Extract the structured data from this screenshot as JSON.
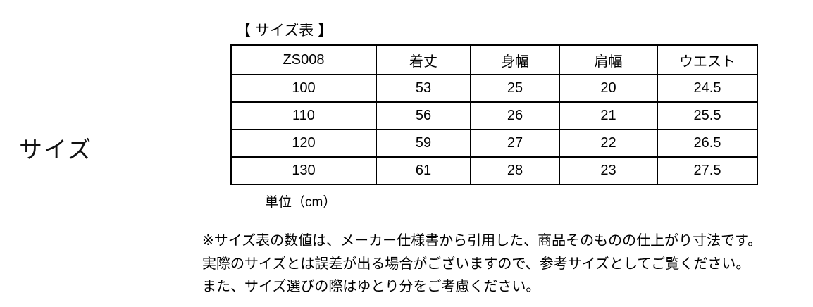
{
  "page": {
    "side_label": "サイズ",
    "table_title": "【 サイズ表 】",
    "unit_note": "単位（cm）"
  },
  "size_table": {
    "model_code": "ZS008",
    "columns": [
      "ZS008",
      "着丈",
      "身幅",
      "肩幅",
      "ウエスト"
    ],
    "rows": [
      [
        "100",
        "53",
        "25",
        "20",
        "24.5"
      ],
      [
        "110",
        "56",
        "26",
        "21",
        "25.5"
      ],
      [
        "120",
        "59",
        "27",
        "22",
        "26.5"
      ],
      [
        "130",
        "61",
        "28",
        "23",
        "27.5"
      ]
    ]
  },
  "notes": {
    "line1": "※サイズ表の数値は、メーカー仕様書から引用した、商品そのものの仕上がり寸法です。",
    "line2": "実際のサイズとは誤差が出る場合がございますので、参考サイズとしてご覧ください。",
    "line3": "また、サイズ選びの際はゆとり分をご考慮ください。"
  },
  "colors": {
    "text": "#000000",
    "background": "#ffffff",
    "table_border": "#000000"
  }
}
